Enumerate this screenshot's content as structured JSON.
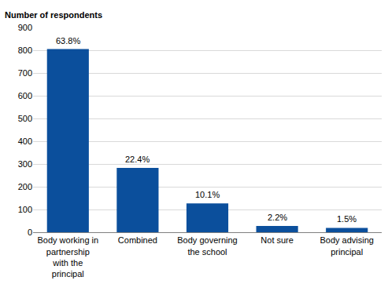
{
  "chart_data": {
    "type": "bar",
    "y_label": "Number of respondents",
    "categories": [
      "Body working in partnership with the principal",
      "Combined",
      "Body governing the school",
      "Not sure",
      "Body advising principal"
    ],
    "values": [
      805,
      283,
      127,
      28,
      19
    ],
    "color": "#0b4f9c",
    "ylim": [
      0,
      900
    ],
    "yticks": [
      0,
      100,
      200,
      300,
      400,
      500,
      600,
      700,
      800,
      900
    ],
    "grid": true,
    "annotations": [
      {
        "category": "Body working in partnership with the principal",
        "text": "63.8%"
      },
      {
        "category": "Combined",
        "text": "22.4%"
      },
      {
        "category": "Body governing the school",
        "text": "10.1%"
      },
      {
        "category": "Not sure",
        "text": "2.2%"
      },
      {
        "category": "Body advising principal",
        "text": "1.5%"
      }
    ]
  }
}
